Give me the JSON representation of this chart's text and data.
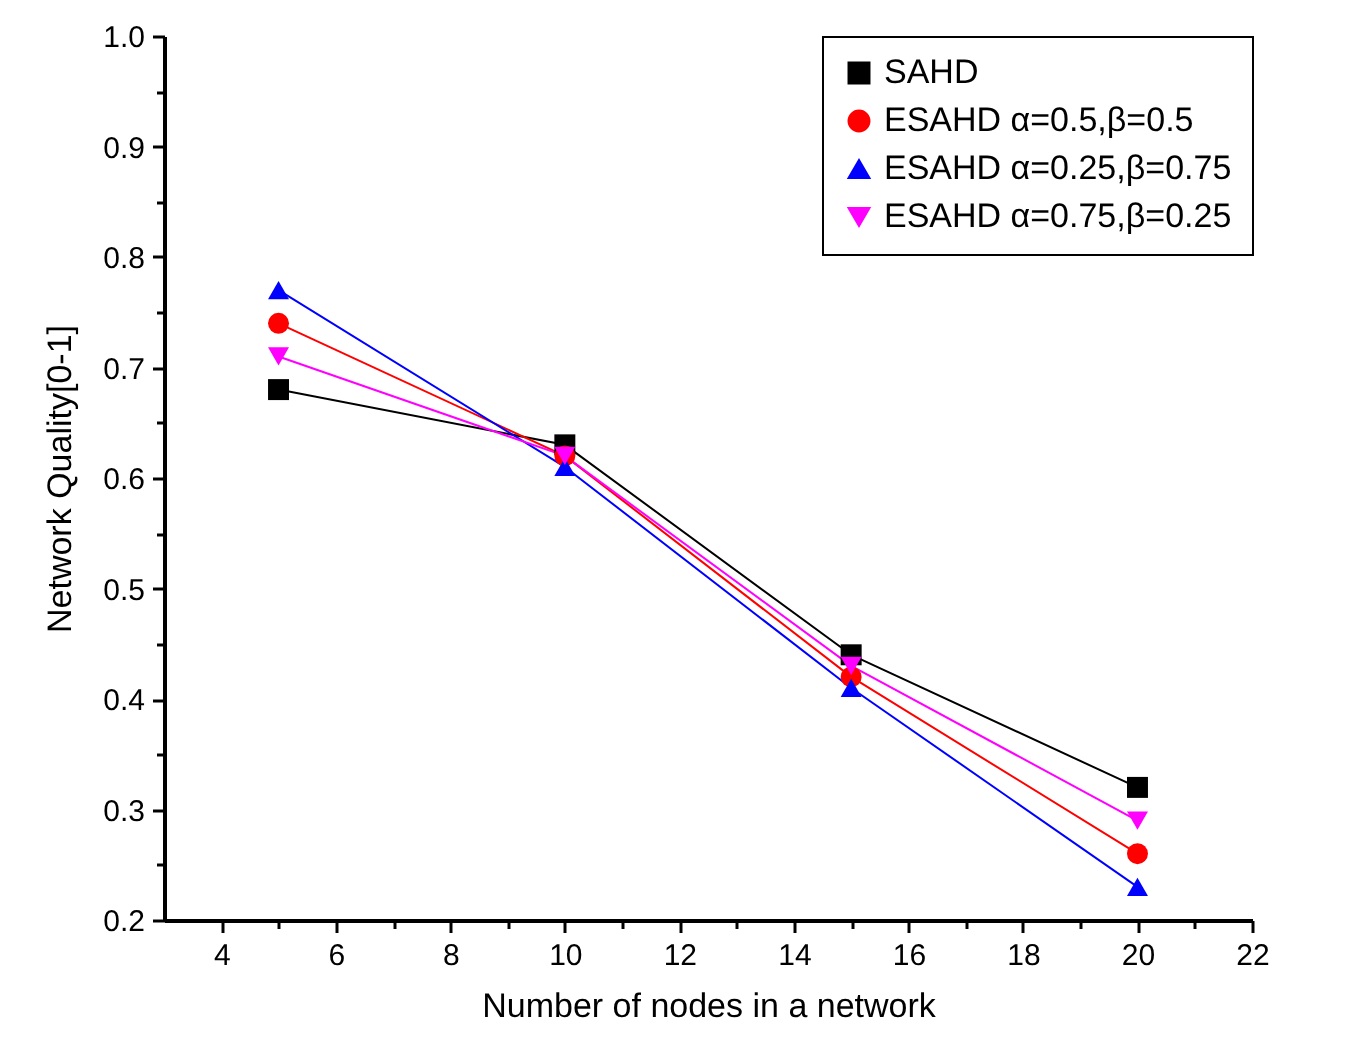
{
  "chart_data": {
    "type": "line",
    "xlabel": "Number of nodes in a network",
    "ylabel": "Network Quality[0-1]",
    "x": [
      5,
      10,
      15,
      20
    ],
    "series": [
      {
        "name": "SAHD",
        "color": "#000000",
        "marker": "square",
        "values": [
          0.68,
          0.63,
          0.44,
          0.32
        ]
      },
      {
        "name": "ESAHD α=0.5,β=0.5",
        "color": "#ff0000",
        "marker": "circle",
        "values": [
          0.74,
          0.62,
          0.42,
          0.26
        ]
      },
      {
        "name": "ESAHD α=0.25,β=0.75",
        "color": "#0000ff",
        "marker": "triangle",
        "values": [
          0.77,
          0.61,
          0.41,
          0.23
        ]
      },
      {
        "name": "ESAHD α=0.75,β=0.25",
        "color": "#ff00ff",
        "marker": "triangle-down",
        "values": [
          0.71,
          0.62,
          0.43,
          0.29
        ]
      }
    ],
    "xlim": [
      3,
      22
    ],
    "xticks": [
      4,
      {
        "value": 5,
        "label": null
      },
      6,
      {
        "value": 7,
        "label": null
      },
      8,
      {
        "value": 9,
        "label": null
      },
      10,
      {
        "value": 11,
        "label": null
      },
      12,
      {
        "value": 13,
        "label": null
      },
      14,
      {
        "value": 15,
        "label": null
      },
      16,
      {
        "value": 17,
        "label": null
      },
      18,
      {
        "value": 19,
        "label": null
      },
      20,
      {
        "value": 21,
        "label": null
      },
      22
    ],
    "ylim": [
      0.2,
      1.0
    ],
    "yticks": [
      0.2,
      {
        "value": 0.25,
        "label": null
      },
      0.3,
      {
        "value": 0.35,
        "label": null
      },
      0.4,
      {
        "value": 0.45,
        "label": null
      },
      0.5,
      {
        "value": 0.55,
        "label": null
      },
      0.6,
      {
        "value": 0.65,
        "label": null
      },
      0.7,
      {
        "value": 0.75,
        "label": null
      },
      0.8,
      {
        "value": 0.85,
        "label": null
      },
      0.9,
      {
        "value": 0.95,
        "label": null
      },
      {
        "value": 1.0,
        "label": "1.0"
      }
    ],
    "grid": false,
    "legend": "top right",
    "line_style": "solid"
  }
}
